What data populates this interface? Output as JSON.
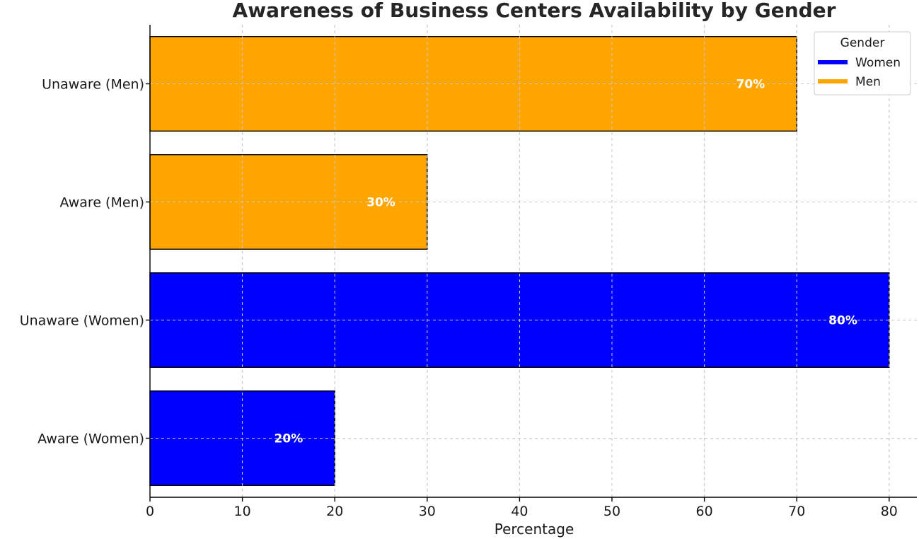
{
  "chart_data": {
    "type": "bar",
    "orientation": "horizontal",
    "title": "Awareness of Business Centers Availability by Gender",
    "xlabel": "Percentage",
    "ylabel": "",
    "xlim": [
      0,
      83
    ],
    "xticks": [
      0,
      10,
      20,
      30,
      40,
      50,
      60,
      70,
      80
    ],
    "grid": true,
    "categories": [
      "Aware (Women)",
      "Unaware (Women)",
      "Aware (Men)",
      "Unaware (Men)"
    ],
    "values": [
      20,
      80,
      30,
      70
    ],
    "data_labels": [
      "20%",
      "80%",
      "30%",
      "70%"
    ],
    "bar_groups": [
      "Women",
      "Women",
      "Men",
      "Men"
    ],
    "legend": {
      "title": "Gender",
      "placement": "top-right",
      "entries": [
        {
          "name": "Women",
          "color": "#0000ff"
        },
        {
          "name": "Men",
          "color": "#ffa500"
        }
      ]
    }
  }
}
